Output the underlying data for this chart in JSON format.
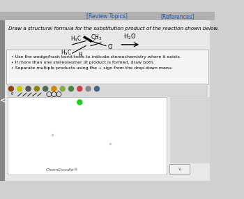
{
  "bg_color": "#d0d0d0",
  "title_bar_color": "#c8c8c8",
  "review_topics_text": "[Review Topics]",
  "references_text": "[References]",
  "main_instruction": "Draw a structural formula for the substitution product of the reaction shown below.",
  "bullet1": "Use the wedge/hash bond tools to indicate stereochemistry where it exists.",
  "bullet2": "If more than one stereoisomer of product is formed, draw both.",
  "bullet3": "Separate multiple products using the + sign from the drop-down menu.",
  "reagent": "H₂O",
  "chemdoodle_label": "ChemDoodle®",
  "white_box_color": "#ffffff",
  "bullet_box_color": "#f5f5f5",
  "header_color": "#e8e8e8",
  "top_bar_color": "#b0b0b0",
  "link_color": "#2255aa",
  "left_panel_color": "#888888"
}
